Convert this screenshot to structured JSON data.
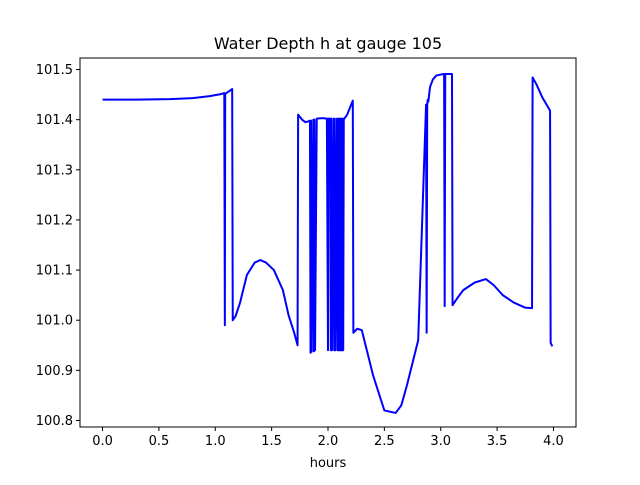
{
  "chart_data": {
    "type": "line",
    "title": "Water Depth h at gauge 105",
    "xlabel": "hours",
    "ylabel": "",
    "xlim": [
      -0.2,
      4.2
    ],
    "ylim": [
      100.787,
      101.523
    ],
    "x_ticks": [
      0.0,
      0.5,
      1.0,
      1.5,
      2.0,
      2.5,
      3.0,
      3.5,
      4.0
    ],
    "x_tick_labels": [
      "0.0",
      "0.5",
      "1.0",
      "1.5",
      "2.0",
      "2.5",
      "3.0",
      "3.5",
      "4.0"
    ],
    "y_ticks": [
      100.8,
      100.9,
      101.0,
      101.1,
      101.2,
      101.3,
      101.4,
      101.5
    ],
    "y_tick_labels": [
      "100.8",
      "100.9",
      "101.0",
      "101.1",
      "101.2",
      "101.3",
      "101.4",
      "101.5"
    ],
    "grid": false,
    "colors": {
      "line": "#0000ff",
      "axes": "#000000",
      "background": "#ffffff"
    },
    "series": [
      {
        "x": [
          0.0,
          0.3,
          0.6,
          0.8,
          0.95,
          1.05,
          1.08,
          1.085,
          1.088,
          1.092,
          1.15,
          1.155,
          1.18,
          1.22,
          1.28,
          1.35,
          1.4,
          1.45,
          1.52,
          1.6,
          1.65,
          1.7,
          1.73,
          1.735,
          1.77,
          1.8,
          1.83,
          1.84,
          1.845,
          1.85,
          1.855,
          1.87,
          1.875,
          1.88,
          1.885,
          1.9,
          1.95,
          1.99,
          2.0,
          2.005,
          2.02,
          2.025,
          2.03,
          2.035,
          2.05,
          2.055,
          2.06,
          2.065,
          2.08,
          2.085,
          2.09,
          2.095,
          2.1,
          2.105,
          2.11,
          2.115,
          2.12,
          2.125,
          2.13,
          2.135,
          2.14,
          2.145,
          2.17,
          2.22,
          2.225,
          2.26,
          2.3,
          2.35,
          2.4,
          2.5,
          2.6,
          2.65,
          2.7,
          2.75,
          2.8,
          2.87,
          2.875,
          2.88,
          2.885,
          2.89,
          2.9,
          2.905,
          2.93,
          2.96,
          3.0,
          3.03,
          3.035,
          3.04,
          3.045,
          3.1,
          3.105,
          3.15,
          3.2,
          3.3,
          3.4,
          3.47,
          3.55,
          3.65,
          3.75,
          3.81,
          3.815,
          3.85,
          3.9,
          3.97,
          3.975,
          3.99
        ],
        "y": [
          101.44,
          101.44,
          101.441,
          101.443,
          101.447,
          101.451,
          101.453,
          100.99,
          101.45,
          101.452,
          101.461,
          101.0,
          101.008,
          101.035,
          101.09,
          101.115,
          101.12,
          101.115,
          101.1,
          101.06,
          101.01,
          100.975,
          100.95,
          101.41,
          101.4,
          101.395,
          101.397,
          101.398,
          100.935,
          101.398,
          100.937,
          101.4,
          100.938,
          101.4,
          100.94,
          101.402,
          101.403,
          101.402,
          100.94,
          101.402,
          101.402,
          100.94,
          101.402,
          100.94,
          101.402,
          100.94,
          101.402,
          100.94,
          101.402,
          100.94,
          101.402,
          100.94,
          101.402,
          100.94,
          101.402,
          100.94,
          101.402,
          100.94,
          101.402,
          100.94,
          101.402,
          101.402,
          101.41,
          101.438,
          100.975,
          100.983,
          100.98,
          100.935,
          100.89,
          100.82,
          100.815,
          100.83,
          100.87,
          100.915,
          100.96,
          101.43,
          100.975,
          101.43,
          101.44,
          101.436,
          101.455,
          101.465,
          101.48,
          101.488,
          101.49,
          101.491,
          101.028,
          101.491,
          101.491,
          101.491,
          101.03,
          101.045,
          101.06,
          101.075,
          101.082,
          101.07,
          101.05,
          101.035,
          101.025,
          101.024,
          101.484,
          101.47,
          101.445,
          101.418,
          100.955,
          100.948
        ]
      }
    ]
  }
}
